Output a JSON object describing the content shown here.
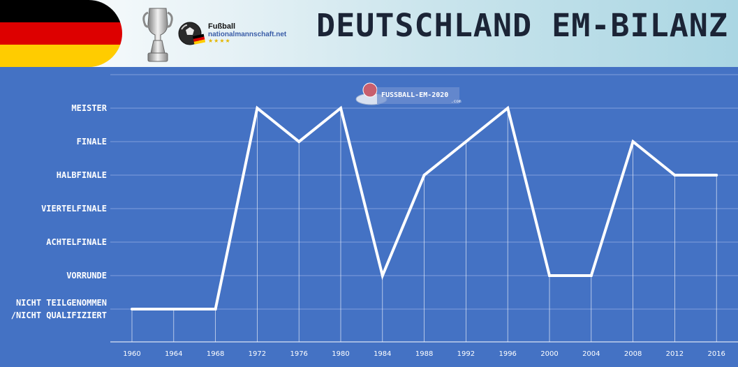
{
  "header": {
    "title": "DEUTSCHLAND EM-BILANZ",
    "logo_title": "Fußball",
    "logo_subtitle": "nationalmannschaft.net",
    "logo_stars": "★★★★",
    "flag_colors": [
      "#000000",
      "#dd0000",
      "#ffcc00"
    ]
  },
  "watermark": {
    "text": "FUSSBALL-EM-2020",
    "suffix": ".com"
  },
  "chart_data": {
    "type": "line",
    "title": "DEUTSCHLAND EM-BILANZ",
    "xlabel": "",
    "ylabel": "",
    "categories": [
      "1960",
      "1964",
      "1968",
      "1972",
      "1976",
      "1980",
      "1984",
      "1988",
      "1992",
      "1996",
      "2000",
      "2004",
      "2008",
      "2012",
      "2016"
    ],
    "y_levels": [
      [
        "NICHT TEILGENOMMEN",
        "/NICHT QUALIFIZIERT"
      ],
      [
        "VORRUNDE"
      ],
      [
        "ACHTELFINALE"
      ],
      [
        "VIERTELFINALE"
      ],
      [
        "HALBFINALE"
      ],
      [
        "FINALE"
      ],
      [
        "MEISTER"
      ]
    ],
    "values": [
      0,
      0,
      0,
      6,
      5,
      6,
      1,
      4,
      5,
      6,
      1,
      1,
      5,
      4,
      4
    ],
    "line_color": "#ffffff",
    "background_color": "#4472c4",
    "grid": true
  }
}
